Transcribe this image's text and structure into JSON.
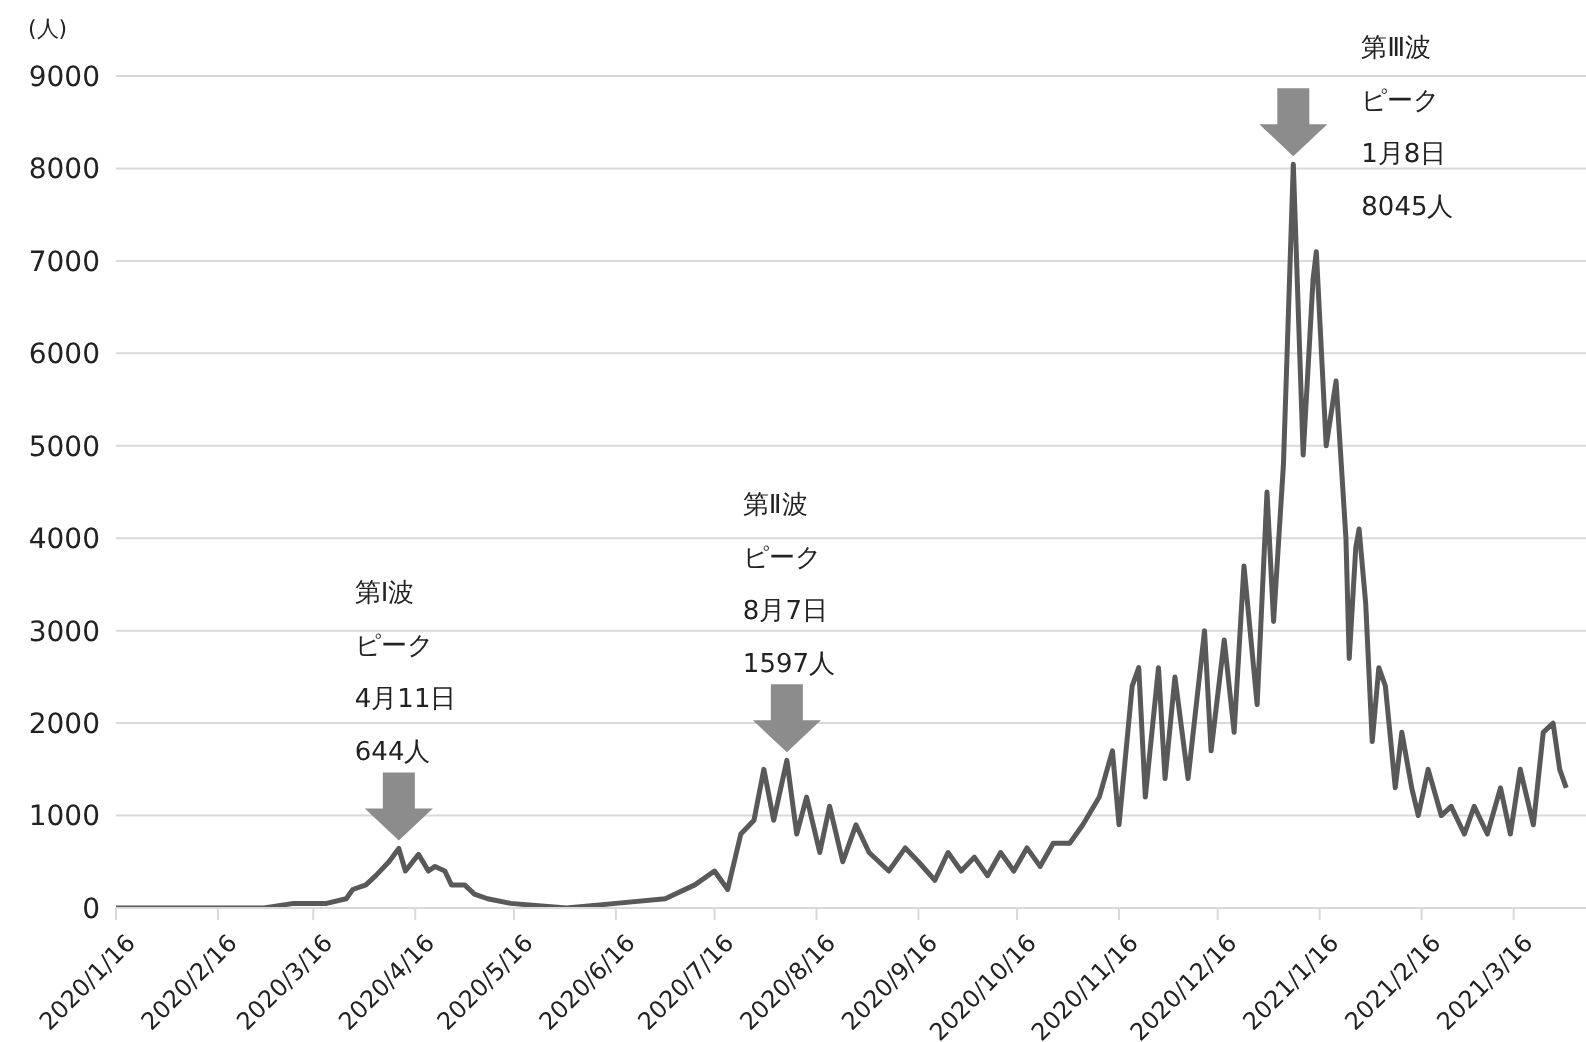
{
  "chart_data": {
    "type": "line",
    "ylabel": "(人)",
    "x": [
      "2020-01-16",
      "2020-02-01",
      "2020-02-16",
      "2020-03-01",
      "2020-03-10",
      "2020-03-20",
      "2020-03-26",
      "2020-03-28",
      "2020-04-01",
      "2020-04-04",
      "2020-04-08",
      "2020-04-11",
      "2020-04-13",
      "2020-04-17",
      "2020-04-20",
      "2020-04-22",
      "2020-04-25",
      "2020-04-27",
      "2020-05-01",
      "2020-05-04",
      "2020-05-08",
      "2020-05-15",
      "2020-06-01",
      "2020-06-16",
      "2020-07-01",
      "2020-07-10",
      "2020-07-16",
      "2020-07-20",
      "2020-07-24",
      "2020-07-28",
      "2020-07-31",
      "2020-08-03",
      "2020-08-07",
      "2020-08-10",
      "2020-08-13",
      "2020-08-17",
      "2020-08-20",
      "2020-08-24",
      "2020-08-28",
      "2020-09-01",
      "2020-09-07",
      "2020-09-12",
      "2020-09-16",
      "2020-09-21",
      "2020-09-25",
      "2020-09-29",
      "2020-10-03",
      "2020-10-07",
      "2020-10-11",
      "2020-10-15",
      "2020-10-19",
      "2020-10-23",
      "2020-10-27",
      "2020-11-01",
      "2020-11-05",
      "2020-11-10",
      "2020-11-14",
      "2020-11-16",
      "2020-11-20",
      "2020-11-22",
      "2020-11-24",
      "2020-11-28",
      "2020-11-30",
      "2020-12-03",
      "2020-12-07",
      "2020-12-12",
      "2020-12-14",
      "2020-12-18",
      "2020-12-21",
      "2020-12-24",
      "2020-12-28",
      "2020-12-31",
      "2021-01-02",
      "2021-01-05",
      "2021-01-08",
      "2021-01-11",
      "2021-01-14",
      "2021-01-15",
      "2021-01-18",
      "2021-01-21",
      "2021-01-24",
      "2021-01-25",
      "2021-01-27",
      "2021-01-28",
      "2021-01-30",
      "2021-02-01",
      "2021-02-03",
      "2021-02-05",
      "2021-02-08",
      "2021-02-10",
      "2021-02-13",
      "2021-02-15",
      "2021-02-18",
      "2021-02-22",
      "2021-02-25",
      "2021-03-01",
      "2021-03-04",
      "2021-03-08",
      "2021-03-12",
      "2021-03-15",
      "2021-03-18",
      "2021-03-22",
      "2021-03-25",
      "2021-03-28",
      "2021-03-30",
      "2021-04-01"
    ],
    "series": [
      {
        "color": "#595959",
        "values": [
          0,
          0,
          0,
          0,
          50,
          50,
          100,
          200,
          250,
          350,
          500,
          644,
          400,
          580,
          400,
          450,
          400,
          250,
          250,
          150,
          100,
          50,
          0,
          50,
          100,
          250,
          400,
          200,
          800,
          950,
          1500,
          950,
          1597,
          800,
          1200,
          600,
          1100,
          500,
          900,
          600,
          400,
          650,
          500,
          300,
          600,
          400,
          550,
          350,
          600,
          400,
          650,
          450,
          700,
          700,
          900,
          1200,
          1700,
          900,
          2400,
          2600,
          1200,
          2600,
          1400,
          2500,
          1400,
          3000,
          1700,
          2900,
          1900,
          3700,
          2200,
          4500,
          3100,
          4800,
          8045,
          4900,
          6800,
          7100,
          5000,
          5700,
          4000,
          2700,
          3900,
          4100,
          3300,
          1800,
          2600,
          2400,
          1300,
          1900,
          1300,
          1000,
          1500,
          1000,
          1100,
          800,
          1100,
          800,
          1300,
          800,
          1500,
          900,
          1900,
          2000,
          1500,
          1300
        ]
      }
    ],
    "xlim": [
      "2020-01-16",
      "2021-04-07"
    ],
    "xticks": [
      {
        "value": "2020-01-16",
        "label": "2020/1/16"
      },
      {
        "value": "2020-02-16",
        "label": "2020/2/16"
      },
      {
        "value": "2020-03-16",
        "label": "2020/3/16"
      },
      {
        "value": "2020-04-16",
        "label": "2020/4/16"
      },
      {
        "value": "2020-05-16",
        "label": "2020/5/16"
      },
      {
        "value": "2020-06-16",
        "label": "2020/6/16"
      },
      {
        "value": "2020-07-16",
        "label": "2020/7/16"
      },
      {
        "value": "2020-08-16",
        "label": "2020/8/16"
      },
      {
        "value": "2020-09-16",
        "label": "2020/9/16"
      },
      {
        "value": "2020-10-16",
        "label": "2020/10/16"
      },
      {
        "value": "2020-11-16",
        "label": "2020/11/16"
      },
      {
        "value": "2020-12-16",
        "label": "2020/12/16"
      },
      {
        "value": "2021-01-16",
        "label": "2021/1/16"
      },
      {
        "value": "2021-02-16",
        "label": "2021/2/16"
      },
      {
        "value": "2021-03-16",
        "label": "2021/3/16"
      }
    ],
    "ylim": [
      0,
      9000
    ],
    "yticks": [
      0,
      1000,
      2000,
      3000,
      4000,
      5000,
      6000,
      7000,
      8000,
      9000
    ],
    "grid": "y",
    "marker": "none",
    "line_style": "solid",
    "annotations": [
      "第Ⅰ波",
      "ピーク",
      "4月11日",
      "644人",
      "第Ⅱ波",
      "ピーク",
      "8月7日",
      "1597人",
      "第Ⅲ波",
      "ピーク",
      "1月8日",
      "8045人"
    ]
  }
}
